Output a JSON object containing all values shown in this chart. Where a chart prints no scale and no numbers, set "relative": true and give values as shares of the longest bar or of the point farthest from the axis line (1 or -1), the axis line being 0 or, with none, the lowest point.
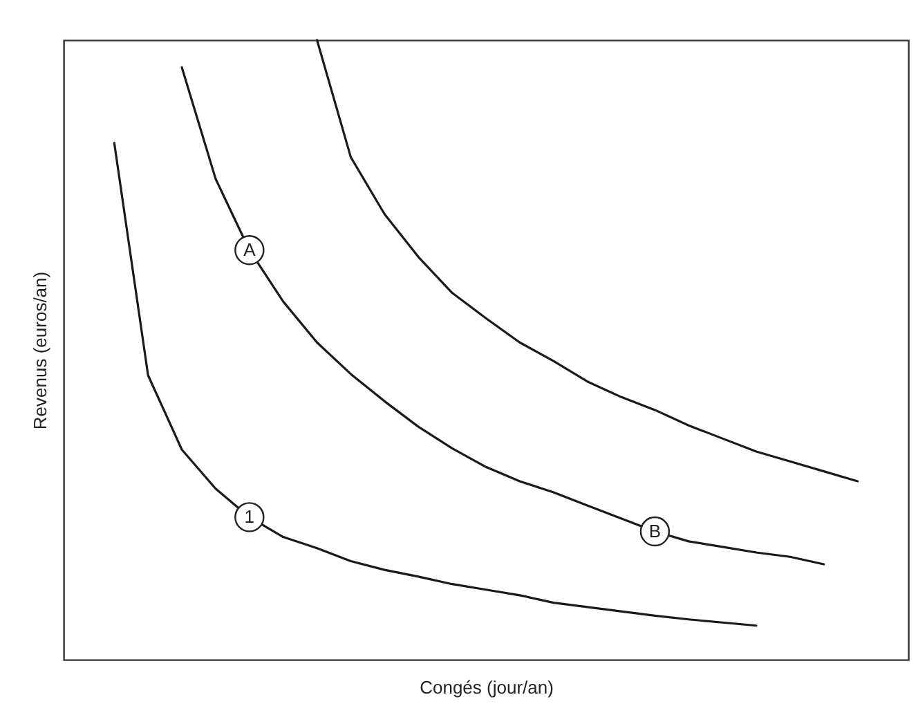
{
  "chart_data": {
    "type": "line",
    "relative": true,
    "xlabel": "Congés (jour/an)",
    "ylabel": "Revenus (euros/an)",
    "grid": false,
    "marker": "none",
    "line_style": "solid",
    "categories": [
      null,
      null,
      null,
      null,
      null,
      null,
      null,
      null,
      null,
      null,
      null,
      null,
      null,
      null,
      null,
      null,
      null,
      null,
      null,
      null,
      null,
      null,
      null,
      null,
      null
    ],
    "series": [
      {
        "color": "#1a1a1a",
        "values": [
          null,
          0.834,
          0.459,
          0.339,
          0.276,
          0.23,
          0.198,
          0.18,
          0.159,
          0.145,
          0.134,
          0.122,
          0.113,
          0.104,
          0.092,
          0.085,
          0.078,
          0.071,
          0.065,
          0.06,
          0.055,
          null,
          null,
          null,
          null
        ]
      },
      {
        "color": "#1a1a1a",
        "values": [
          null,
          null,
          null,
          0.956,
          0.776,
          0.661,
          0.578,
          0.512,
          0.461,
          0.417,
          0.376,
          0.341,
          0.311,
          0.288,
          0.27,
          0.249,
          0.228,
          0.207,
          0.191,
          0.182,
          0.173,
          0.166,
          0.154,
          null,
          null
        ]
      },
      {
        "color": "#1a1a1a",
        "values": [
          null,
          null,
          null,
          null,
          null,
          null,
          null,
          1,
          0.811,
          0.719,
          0.65,
          0.592,
          0.551,
          0.512,
          0.482,
          0.449,
          0.424,
          0.403,
          0.378,
          0.357,
          0.336,
          0.32,
          0.304,
          0.288,
          null
        ]
      }
    ],
    "annotations": [
      {
        "text": "A",
        "y": 0.661
      },
      {
        "text": "1",
        "y": 0.23
      },
      {
        "text": "B",
        "y": 0.207
      }
    ]
  }
}
